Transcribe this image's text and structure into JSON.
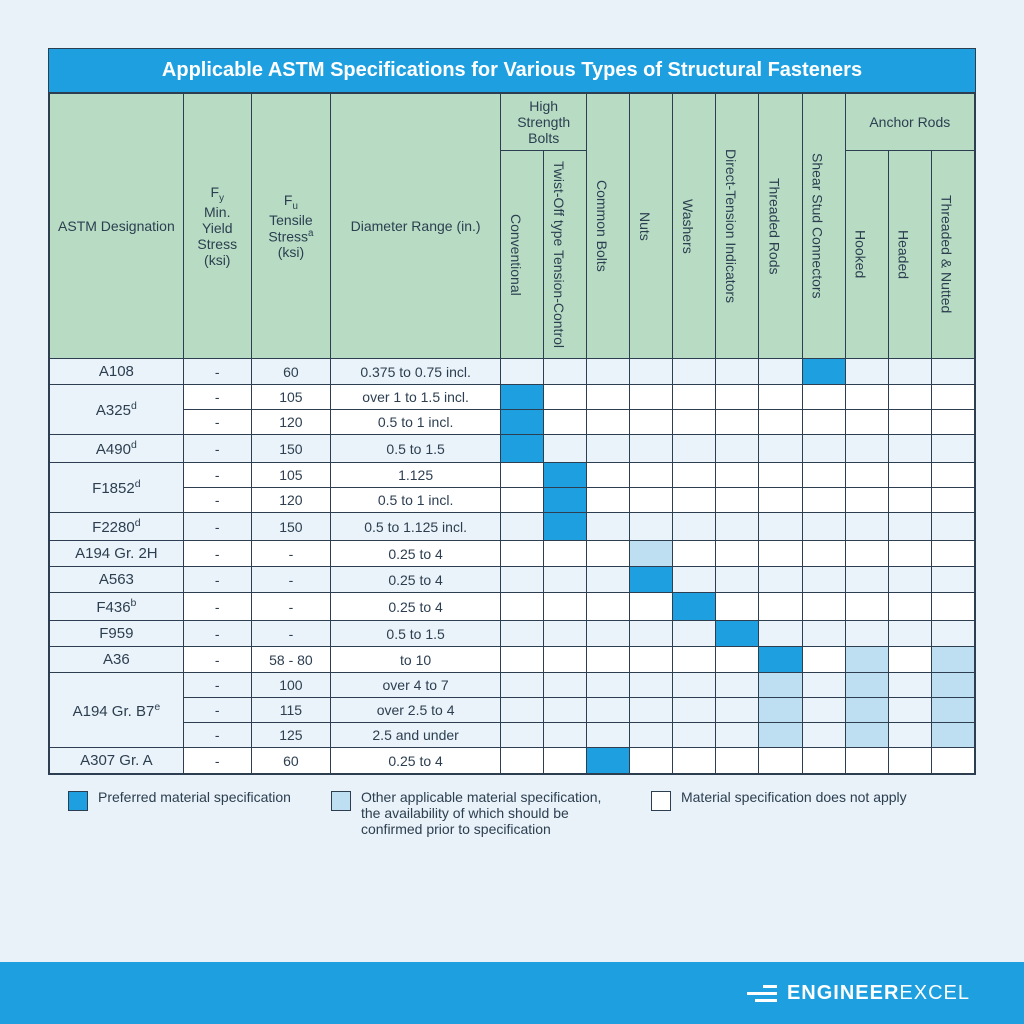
{
  "title": "Applicable ASTM Specifications for Various Types of Structural Fasteners",
  "columns": {
    "designation": "ASTM Designation",
    "fy_html": "F<span class='sub'>y</span><br>Min. Yield Stress (ksi)",
    "fu_html": "F<span class='sub'>u</span><br>Tensile Stress<span class='sup'>a</span> (ksi)",
    "diameter": "Diameter Range (in.)",
    "group_hsb": "High Strength Bolts",
    "group_anchor": "Anchor Rods",
    "conventional": "Conventional",
    "twist_off": "Twist-Off type Tension-Control",
    "common_bolts": "Common Bolts",
    "nuts": "Nuts",
    "washers": "Washers",
    "dti": "Direct-Tension Indicators",
    "threaded_rods": "Threaded Rods",
    "shear_stud": "Shear Stud Connectors",
    "hooked": "Hooked",
    "headed": "Headed",
    "threaded_nutted": "Threaded & Nutted"
  },
  "col_widths": {
    "designation": 118,
    "fy": 60,
    "fu": 70,
    "diameter": 150,
    "mark": 38
  },
  "legend": {
    "preferred": "Preferred material specification",
    "other": "Other applicable material specification, the availability of which should be confirmed prior to specification",
    "none": "Material specification does not apply"
  },
  "colors": {
    "preferred": "#1ea0e0",
    "other": "#bedff2",
    "none": "#ffffff",
    "header_bg": "#b7dcc3",
    "page_bg": "#e8f2f8",
    "border": "#2c3e50"
  },
  "mark_columns": [
    "conventional",
    "twist_off",
    "common_bolts",
    "nuts",
    "washers",
    "dti",
    "threaded_rods",
    "shear_stud",
    "hooked",
    "headed",
    "threaded_nutted"
  ],
  "rows": [
    {
      "designation_html": "A108",
      "subrows": [
        {
          "fy": "-",
          "fu": "60",
          "diameter": "0.375 to 0.75 incl.",
          "marks": {
            "shear_stud": "preferred"
          }
        }
      ]
    },
    {
      "designation_html": "A325<span class='sup'>d</span>",
      "subrows": [
        {
          "fy": "-",
          "fu": "105",
          "diameter": "over 1 to 1.5 incl.",
          "marks": {
            "conventional": "preferred"
          }
        },
        {
          "fy": "-",
          "fu": "120",
          "diameter": "0.5 to 1 incl.",
          "marks": {
            "conventional": "preferred"
          }
        }
      ]
    },
    {
      "designation_html": "A490<span class='sup'>d</span>",
      "subrows": [
        {
          "fy": "-",
          "fu": "150",
          "diameter": "0.5 to 1.5",
          "marks": {
            "conventional": "preferred"
          }
        }
      ]
    },
    {
      "designation_html": "F1852<span class='sup'>d</span>",
      "subrows": [
        {
          "fy": "-",
          "fu": "105",
          "diameter": "1.125",
          "marks": {
            "twist_off": "preferred"
          }
        },
        {
          "fy": "-",
          "fu": "120",
          "diameter": "0.5 to 1 incl.",
          "marks": {
            "twist_off": "preferred"
          }
        }
      ]
    },
    {
      "designation_html": "F2280<span class='sup'>d</span>",
      "subrows": [
        {
          "fy": "-",
          "fu": "150",
          "diameter": "0.5 to 1.125 incl.",
          "marks": {
            "twist_off": "preferred"
          }
        }
      ]
    },
    {
      "designation_html": "A194 Gr. 2H",
      "subrows": [
        {
          "fy": "-",
          "fu": "-",
          "diameter": "0.25 to 4",
          "marks": {
            "nuts": "other"
          }
        }
      ]
    },
    {
      "designation_html": "A563",
      "subrows": [
        {
          "fy": "-",
          "fu": "-",
          "diameter": "0.25 to 4",
          "marks": {
            "nuts": "preferred"
          }
        }
      ]
    },
    {
      "designation_html": "F436<span class='sup'>b</span>",
      "subrows": [
        {
          "fy": "-",
          "fu": "-",
          "diameter": "0.25 to 4",
          "marks": {
            "washers": "preferred"
          }
        }
      ]
    },
    {
      "designation_html": "F959",
      "subrows": [
        {
          "fy": "-",
          "fu": "-",
          "diameter": "0.5 to 1.5",
          "marks": {
            "dti": "preferred"
          }
        }
      ]
    },
    {
      "designation_html": "A36",
      "subrows": [
        {
          "fy": "-",
          "fu": "58 - 80",
          "diameter": "to 10",
          "marks": {
            "threaded_rods": "preferred",
            "hooked": "other",
            "threaded_nutted": "other"
          }
        }
      ]
    },
    {
      "designation_html": "A194 Gr. B7<span class='sup'>e</span>",
      "subrows": [
        {
          "fy": "-",
          "fu": "100",
          "diameter": "over 4 to 7",
          "marks": {
            "threaded_rods": "other",
            "hooked": "other",
            "threaded_nutted": "other"
          }
        },
        {
          "fy": "-",
          "fu": "115",
          "diameter": "over 2.5 to 4",
          "marks": {
            "threaded_rods": "other",
            "hooked": "other",
            "threaded_nutted": "other"
          }
        },
        {
          "fy": "-",
          "fu": "125",
          "diameter": "2.5 and under",
          "marks": {
            "threaded_rods": "other",
            "hooked": "other",
            "threaded_nutted": "other"
          }
        }
      ]
    },
    {
      "designation_html": "A307 Gr. A",
      "subrows": [
        {
          "fy": "-",
          "fu": "60",
          "diameter": "0.25 to 4",
          "marks": {
            "common_bolts": "preferred"
          }
        }
      ]
    }
  ],
  "footer_brand": {
    "bold": "ENGINEER",
    "light": "EXCEL"
  }
}
